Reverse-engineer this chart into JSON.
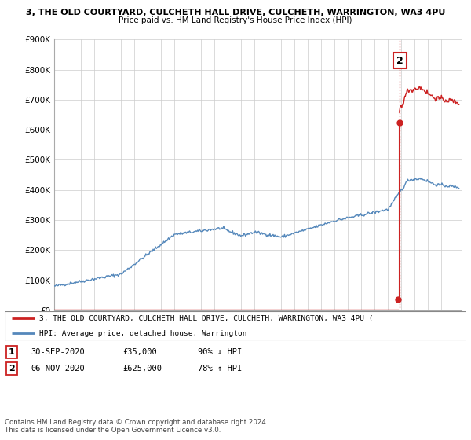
{
  "title_line1": "3, THE OLD COURTYARD, CULCHETH HALL DRIVE, CULCHETH, WARRINGTON, WA3 4PU",
  "title_line2": "Price paid vs. HM Land Registry's House Price Index (HPI)",
  "hpi_color": "#5588bb",
  "price_color": "#cc2222",
  "marker1_date_num": 2020.74,
  "marker2_date_num": 2020.84,
  "marker1_price": 35000,
  "marker2_price": 625000,
  "legend_line1": "3, THE OLD COURTYARD, CULCHETH HALL DRIVE, CULCHETH, WARRINGTON, WA3 4PU (",
  "legend_line2": "HPI: Average price, detached house, Warrington",
  "table_row1": [
    "1",
    "30-SEP-2020",
    "£35,000",
    "90% ↓ HPI"
  ],
  "table_row2": [
    "2",
    "06-NOV-2020",
    "£625,000",
    "78% ↑ HPI"
  ],
  "footnote1": "Contains HM Land Registry data © Crown copyright and database right 2024.",
  "footnote2": "This data is licensed under the Open Government Licence v3.0.",
  "ylim_max": 900000,
  "xlim_min": 1995.0,
  "xlim_max": 2025.5,
  "xticks": [
    1995,
    1996,
    1997,
    1998,
    1999,
    2000,
    2001,
    2002,
    2003,
    2004,
    2005,
    2006,
    2007,
    2008,
    2009,
    2010,
    2011,
    2012,
    2013,
    2014,
    2015,
    2016,
    2017,
    2018,
    2019,
    2020,
    2021,
    2022,
    2023,
    2024,
    2025
  ],
  "yticks": [
    0,
    100000,
    200000,
    300000,
    400000,
    500000,
    600000,
    700000,
    800000,
    900000
  ],
  "ytick_labels": [
    "£0",
    "£100K",
    "£200K",
    "£300K",
    "£400K",
    "£500K",
    "£600K",
    "£700K",
    "£800K",
    "£900K"
  ]
}
